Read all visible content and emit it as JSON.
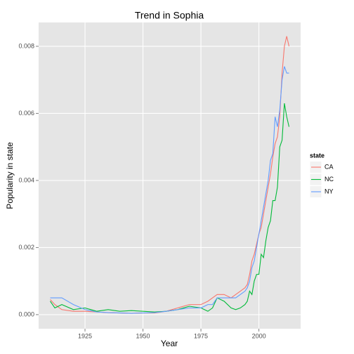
{
  "chart_data": {
    "type": "line",
    "title": "Trend in Sophia",
    "x_label": "Year",
    "y_label": "Popularity in state",
    "legend_title": "state",
    "legend_position": "right",
    "grid": true,
    "x": [
      1910,
      1912,
      1915,
      1920,
      1925,
      1930,
      1935,
      1940,
      1945,
      1950,
      1955,
      1960,
      1965,
      1970,
      1975,
      1978,
      1980,
      1982,
      1985,
      1988,
      1990,
      1992,
      1994,
      1995,
      1996,
      1997,
      1998,
      1999,
      2000,
      2001,
      2002,
      2003,
      2004,
      2005,
      2006,
      2007,
      2008,
      2009,
      2010,
      2011,
      2012,
      2013
    ],
    "series": [
      {
        "name": "CA",
        "color": "#f8766d",
        "values": [
          0.00045,
          0.0003,
          0.00015,
          0.0001,
          0.0001,
          8e-05,
          6e-05,
          5e-05,
          4e-05,
          5e-05,
          5e-05,
          0.0001,
          0.0002,
          0.0003,
          0.0003,
          0.0004,
          0.0005,
          0.0006,
          0.0006,
          0.0005,
          0.0006,
          0.0007,
          0.0008,
          0.0009,
          0.0012,
          0.0016,
          0.0018,
          0.0021,
          0.0024,
          0.0026,
          0.003,
          0.0034,
          0.0038,
          0.0042,
          0.0047,
          0.0051,
          0.0053,
          0.0059,
          0.0072,
          0.008,
          0.0083,
          0.008
        ]
      },
      {
        "name": "NC",
        "color": "#00ba38",
        "values": [
          0.0004,
          0.0002,
          0.0003,
          0.00015,
          0.0002,
          0.0001,
          0.00015,
          0.0001,
          0.00012,
          0.0001,
          8e-05,
          0.0001,
          0.00015,
          0.00025,
          0.0002,
          0.0001,
          0.0002,
          0.0005,
          0.0004,
          0.0002,
          0.00015,
          0.0002,
          0.0003,
          0.0004,
          0.0007,
          0.0006,
          0.001,
          0.0012,
          0.0012,
          0.0018,
          0.0017,
          0.0022,
          0.0026,
          0.0028,
          0.0034,
          0.0034,
          0.0038,
          0.005,
          0.0052,
          0.0063,
          0.0059,
          0.0056
        ]
      },
      {
        "name": "NY",
        "color": "#619cff",
        "values": [
          0.0005,
          0.0005,
          0.0005,
          0.0003,
          0.00015,
          8e-05,
          6e-05,
          5e-05,
          4e-05,
          5e-05,
          6e-05,
          0.0001,
          0.00015,
          0.0002,
          0.0002,
          0.0003,
          0.0003,
          0.0005,
          0.0005,
          0.0005,
          0.0005,
          0.0006,
          0.0007,
          0.0008,
          0.001,
          0.0014,
          0.0016,
          0.002,
          0.0024,
          0.0028,
          0.0032,
          0.0036,
          0.004,
          0.0046,
          0.0048,
          0.0059,
          0.0056,
          0.0061,
          0.007,
          0.0074,
          0.0072,
          0.0072
        ]
      }
    ],
    "xlim": [
      1905,
      2018
    ],
    "xticks": [
      1925,
      1950,
      1975,
      2000
    ],
    "ylim": [
      -0.00042,
      0.00871
    ],
    "yticks": [
      {
        "value": 0,
        "label": "0.000"
      },
      {
        "value": 0.002,
        "label": "0.002"
      },
      {
        "value": 0.004,
        "label": "0.004"
      },
      {
        "value": 0.006,
        "label": "0.006"
      },
      {
        "value": 0.008,
        "label": "0.008"
      }
    ]
  }
}
